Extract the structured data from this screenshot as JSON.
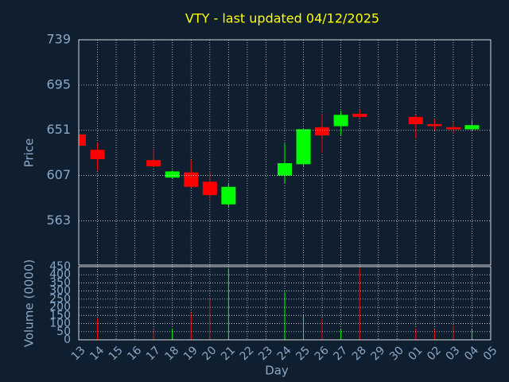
{
  "chart_data": [
    {
      "type": "candlestick",
      "title": "VTY - last updated 04/12/2025",
      "ylabel": "Price",
      "categories": [
        "13",
        "14",
        "15",
        "16",
        "17",
        "18",
        "19",
        "20",
        "21",
        "22",
        "23",
        "24",
        "25",
        "26",
        "27",
        "28",
        "29",
        "30",
        "01",
        "02",
        "03",
        "04",
        "05"
      ],
      "open": [
        647,
        632,
        null,
        null,
        622,
        605,
        610,
        601,
        579,
        null,
        null,
        607,
        618,
        654,
        655,
        667,
        null,
        null,
        664,
        657,
        654,
        652,
        null
      ],
      "high": [
        648,
        639,
        null,
        null,
        633,
        612,
        622,
        611,
        600,
        null,
        null,
        638,
        652,
        667,
        670,
        671,
        null,
        null,
        666,
        662,
        659,
        661,
        null
      ],
      "low": [
        636,
        612,
        null,
        null,
        615,
        604,
        595,
        582,
        576,
        null,
        null,
        599,
        615,
        629,
        646,
        662,
        null,
        null,
        643,
        651,
        648,
        651,
        null
      ],
      "close": [
        636,
        623,
        null,
        null,
        616,
        611,
        596,
        588,
        596,
        null,
        null,
        619,
        652,
        646,
        666,
        664,
        null,
        null,
        657,
        655,
        652,
        656,
        null
      ],
      "up_color": "#00ff00",
      "down_color": "#ff0000",
      "ylim": [
        520,
        739
      ],
      "yticks": [
        563,
        607,
        651,
        695,
        739
      ],
      "grid": true
    },
    {
      "type": "bar",
      "ylabel": "Volume (0000)",
      "xlabel": "Day",
      "categories": [
        "13",
        "14",
        "15",
        "16",
        "17",
        "18",
        "19",
        "20",
        "21",
        "22",
        "23",
        "24",
        "25",
        "26",
        "27",
        "28",
        "29",
        "30",
        "01",
        "02",
        "03",
        "04",
        "05"
      ],
      "values": [
        10,
        132,
        null,
        null,
        59,
        68,
        166,
        259,
        440,
        null,
        null,
        294,
        147,
        127,
        64,
        440,
        null,
        null,
        68,
        64,
        88,
        64,
        null
      ],
      "ylim": [
        0,
        450
      ],
      "yticks": [
        0,
        50,
        100,
        150,
        200,
        250,
        300,
        350,
        400,
        450
      ],
      "grid": true
    }
  ]
}
